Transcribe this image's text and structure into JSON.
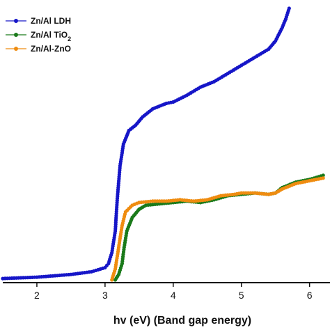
{
  "chart_data": {
    "type": "scatter",
    "xlabel": "hv (eV) (Band gap energy)",
    "ylabel": "",
    "xlim": [
      1.5,
      6.3
    ],
    "ylim": [
      0,
      1.0
    ],
    "xticks": [
      "2",
      "3",
      "4",
      "5",
      "6"
    ],
    "grid": false,
    "legend_position": "top-left",
    "series": [
      {
        "name": "Zn/Al LDH",
        "name_main": "Zn/Al LDH",
        "name_sub": "",
        "color": "#1616c8",
        "points": [
          [
            1.5,
            0.005
          ],
          [
            2.0,
            0.01
          ],
          [
            2.5,
            0.02
          ],
          [
            2.8,
            0.03
          ],
          [
            3.0,
            0.045
          ],
          [
            3.05,
            0.06
          ],
          [
            3.1,
            0.1
          ],
          [
            3.15,
            0.18
          ],
          [
            3.18,
            0.3
          ],
          [
            3.22,
            0.42
          ],
          [
            3.27,
            0.5
          ],
          [
            3.35,
            0.55
          ],
          [
            3.45,
            0.57
          ],
          [
            3.55,
            0.6
          ],
          [
            3.7,
            0.63
          ],
          [
            3.9,
            0.65
          ],
          [
            4.0,
            0.655
          ],
          [
            4.2,
            0.68
          ],
          [
            4.4,
            0.71
          ],
          [
            4.6,
            0.73
          ],
          [
            4.8,
            0.76
          ],
          [
            5.0,
            0.79
          ],
          [
            5.2,
            0.82
          ],
          [
            5.4,
            0.85
          ],
          [
            5.5,
            0.88
          ],
          [
            5.6,
            0.93
          ],
          [
            5.65,
            0.96
          ],
          [
            5.7,
            1.0
          ]
        ]
      },
      {
        "name": "Zn/Al TiO2",
        "name_main": "Zn/Al TiO",
        "name_sub": "2",
        "color": "#1a7a1a",
        "points": [
          [
            3.15,
            0.0
          ],
          [
            3.2,
            0.02
          ],
          [
            3.25,
            0.06
          ],
          [
            3.28,
            0.12
          ],
          [
            3.32,
            0.18
          ],
          [
            3.4,
            0.23
          ],
          [
            3.5,
            0.26
          ],
          [
            3.6,
            0.275
          ],
          [
            3.8,
            0.28
          ],
          [
            4.0,
            0.285
          ],
          [
            4.2,
            0.29
          ],
          [
            4.4,
            0.285
          ],
          [
            4.6,
            0.295
          ],
          [
            4.8,
            0.31
          ],
          [
            5.0,
            0.315
          ],
          [
            5.2,
            0.32
          ],
          [
            5.4,
            0.315
          ],
          [
            5.5,
            0.32
          ],
          [
            5.6,
            0.34
          ],
          [
            5.8,
            0.36
          ],
          [
            6.0,
            0.37
          ],
          [
            6.2,
            0.385
          ]
        ]
      },
      {
        "name": "Zn/Al-ZnO",
        "name_main": "Zn/Al-ZnO",
        "name_sub": "",
        "color": "#ef8c10",
        "points": [
          [
            3.1,
            0.0
          ],
          [
            3.15,
            0.04
          ],
          [
            3.2,
            0.12
          ],
          [
            3.25,
            0.2
          ],
          [
            3.3,
            0.25
          ],
          [
            3.4,
            0.275
          ],
          [
            3.5,
            0.285
          ],
          [
            3.7,
            0.29
          ],
          [
            3.9,
            0.29
          ],
          [
            4.1,
            0.295
          ],
          [
            4.3,
            0.29
          ],
          [
            4.5,
            0.295
          ],
          [
            4.7,
            0.31
          ],
          [
            4.9,
            0.315
          ],
          [
            5.0,
            0.32
          ],
          [
            5.2,
            0.32
          ],
          [
            5.4,
            0.315
          ],
          [
            5.5,
            0.32
          ],
          [
            5.6,
            0.335
          ],
          [
            5.8,
            0.355
          ],
          [
            6.0,
            0.365
          ],
          [
            6.2,
            0.375
          ]
        ]
      }
    ]
  }
}
